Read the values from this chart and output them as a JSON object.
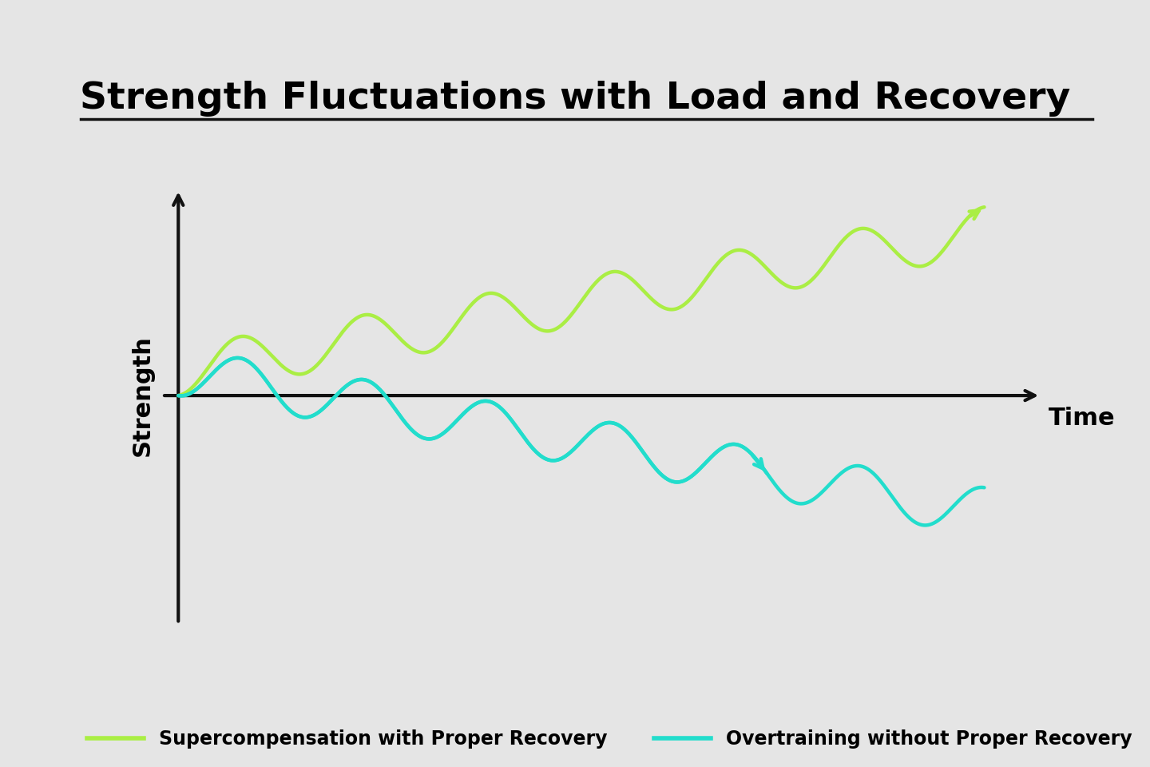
{
  "title": "Strength Fluctuations with Load and Recovery",
  "title_fontsize": 34,
  "title_fontweight": "bold",
  "background_color": "#e5e5e5",
  "xlabel": "Time",
  "ylabel": "Strength",
  "xlabel_fontsize": 22,
  "ylabel_fontsize": 22,
  "ylabel_fontweight": "bold",
  "xlabel_fontweight": "bold",
  "supercomp_color": "#aaee44",
  "overtrain_color": "#22ddcc",
  "axis_color": "#111111",
  "line_width": 3.2,
  "legend_fontsize": 17,
  "legend_label_super": "Supercompensation with Proper Recovery",
  "legend_label_over": "Overtraining without Proper Recovery",
  "divider_color": "#111111",
  "n_cycles": 6.5,
  "super_trend_slope": 0.32,
  "over_trend_slope": -0.32,
  "amplitude": 0.55
}
